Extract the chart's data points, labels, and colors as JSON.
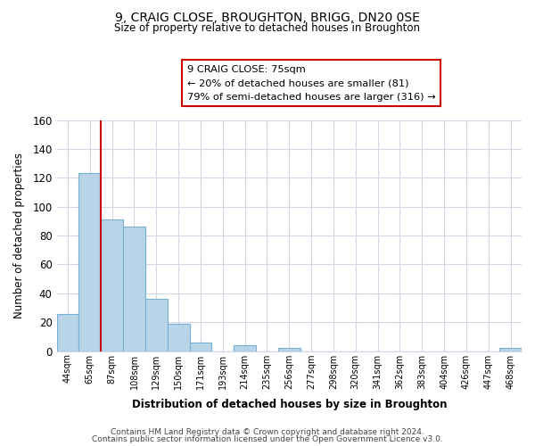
{
  "title": "9, CRAIG CLOSE, BROUGHTON, BRIGG, DN20 0SE",
  "subtitle": "Size of property relative to detached houses in Broughton",
  "xlabel": "Distribution of detached houses by size in Broughton",
  "ylabel": "Number of detached properties",
  "bar_labels": [
    "44sqm",
    "65sqm",
    "87sqm",
    "108sqm",
    "129sqm",
    "150sqm",
    "171sqm",
    "193sqm",
    "214sqm",
    "235sqm",
    "256sqm",
    "277sqm",
    "298sqm",
    "320sqm",
    "341sqm",
    "362sqm",
    "383sqm",
    "404sqm",
    "426sqm",
    "447sqm",
    "468sqm"
  ],
  "bar_values": [
    26,
    123,
    91,
    86,
    36,
    19,
    6,
    0,
    4,
    0,
    2,
    0,
    0,
    0,
    0,
    0,
    0,
    0,
    0,
    0,
    2
  ],
  "bar_color": "#b8d4e8",
  "bar_edge_color": "#7aafd4",
  "vline_x": 1.5,
  "vline_color": "#cc0000",
  "ylim": [
    0,
    160
  ],
  "yticks": [
    0,
    20,
    40,
    60,
    80,
    100,
    120,
    140,
    160
  ],
  "annotation_title": "9 CRAIG CLOSE: 75sqm",
  "annotation_line1": "← 20% of detached houses are smaller (81)",
  "annotation_line2": "79% of semi-detached houses are larger (316) →",
  "annotation_box_color": "#ffffff",
  "annotation_box_edge_color": "#cc0000",
  "footer_line1": "Contains HM Land Registry data © Crown copyright and database right 2024.",
  "footer_line2": "Contains public sector information licensed under the Open Government Licence v3.0.",
  "background_color": "#ffffff",
  "grid_color": "#d0d8e8"
}
